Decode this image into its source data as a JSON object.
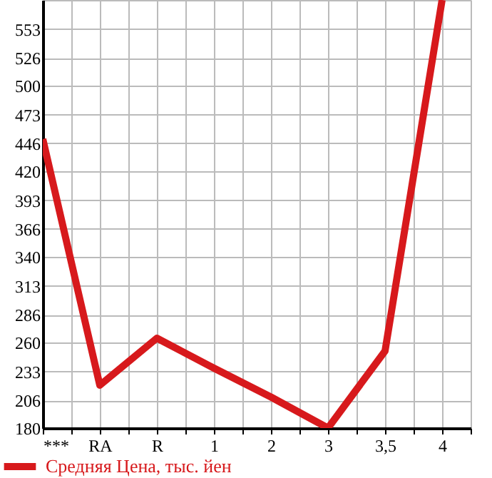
{
  "chart_data": {
    "type": "line",
    "categories": [
      "***",
      "RA",
      "R",
      "1",
      "2",
      "3",
      "3,5",
      "4"
    ],
    "series": [
      {
        "name": "Средняя Цена, тыс. йен",
        "color": "#d7191c",
        "values": [
          450,
          220,
          264,
          236,
          209,
          180,
          252,
          580
        ]
      }
    ],
    "ylim": [
      180,
      580
    ],
    "yticks": [
      180,
      206,
      233,
      260,
      286,
      313,
      340,
      366,
      393,
      420,
      446,
      473,
      500,
      526,
      553,
      {
        "value": 580,
        "label": null
      }
    ],
    "grid": true,
    "legend": "bottom",
    "marker": "none",
    "line_style": "solid"
  }
}
